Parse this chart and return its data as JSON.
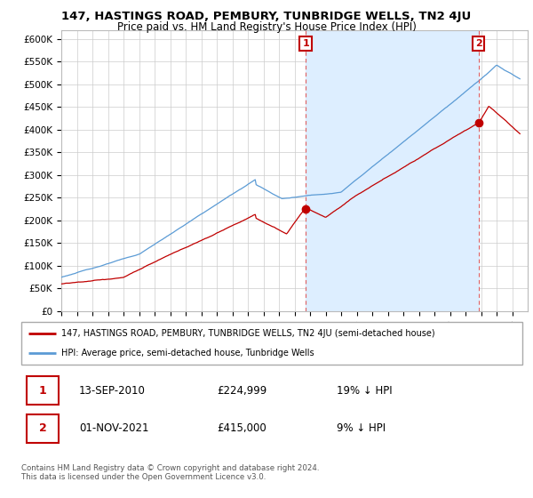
{
  "title": "147, HASTINGS ROAD, PEMBURY, TUNBRIDGE WELLS, TN2 4JU",
  "subtitle": "Price paid vs. HM Land Registry's House Price Index (HPI)",
  "ylim": [
    0,
    620000
  ],
  "yticks": [
    0,
    50000,
    100000,
    150000,
    200000,
    250000,
    300000,
    350000,
    400000,
    450000,
    500000,
    550000,
    600000
  ],
  "ytick_labels": [
    "£0",
    "£50K",
    "£100K",
    "£150K",
    "£200K",
    "£250K",
    "£300K",
    "£350K",
    "£400K",
    "£450K",
    "£500K",
    "£550K",
    "£600K"
  ],
  "xlim_start": 1995.0,
  "xlim_end": 2025.0,
  "hpi_color": "#5b9bd5",
  "price_color": "#c00000",
  "vline_color": "#e06060",
  "shade_color": "#ddeeff",
  "annotation_box_color": "#c00000",
  "background_color": "#ffffff",
  "grid_color": "#cccccc",
  "sale1_x": 2010.72,
  "sale1_y": 224999,
  "sale2_x": 2021.83,
  "sale2_y": 415000,
  "legend_label_red": "147, HASTINGS ROAD, PEMBURY, TUNBRIDGE WELLS, TN2 4JU (semi-detached house)",
  "legend_label_blue": "HPI: Average price, semi-detached house, Tunbridge Wells",
  "footer1": "Contains HM Land Registry data © Crown copyright and database right 2024.",
  "footer2": "This data is licensed under the Open Government Licence v3.0.",
  "table_row1_date": "13-SEP-2010",
  "table_row1_price": "£224,999",
  "table_row1_hpi": "19% ↓ HPI",
  "table_row2_date": "01-NOV-2021",
  "table_row2_price": "£415,000",
  "table_row2_hpi": "9% ↓ HPI"
}
